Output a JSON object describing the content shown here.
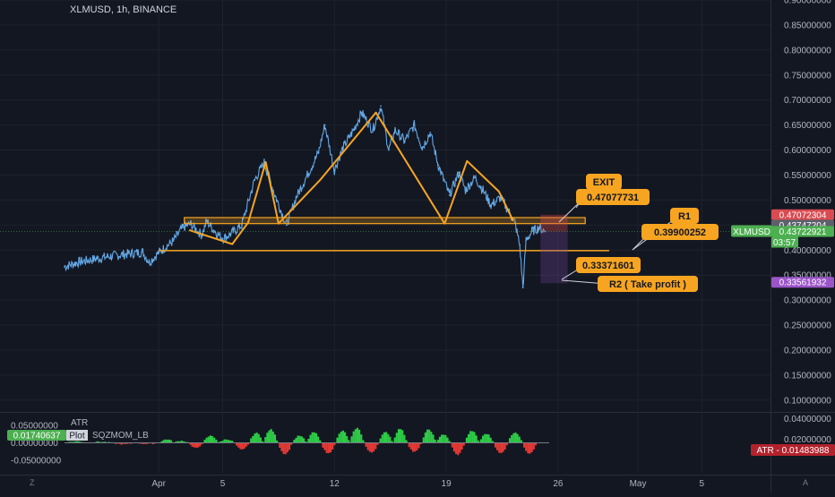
{
  "header": {
    "title": "XLMUSD, 1h, BINANCE"
  },
  "corner_labels": {
    "bottom_left": "Z",
    "bottom_right": "A"
  },
  "colors": {
    "background": "#131722",
    "candle": "#64a9e6",
    "pattern": "#f7a520",
    "badge_red": "#d94b51",
    "badge_grey": "#5d606b",
    "badge_green": "#4caf50",
    "badge_purple": "#9c55c9",
    "momentum_up": "#2ecc47",
    "momentum_down": "#e53935"
  },
  "chart_data": [
    {
      "type": "line",
      "title": "XLMUSD, 1h, BINANCE",
      "ylim": [
        0.08,
        0.9
      ],
      "y_ticks": [
        "0.90000000",
        "0.85000000",
        "0.80000000",
        "0.75000000",
        "0.70000000",
        "0.65000000",
        "0.60000000",
        "0.55000000",
        "0.50000000",
        "0.45000000",
        "0.40000000",
        "0.35000000",
        "0.30000000",
        "0.25000000",
        "0.20000000",
        "0.15000000",
        "0.10000000"
      ],
      "x_ticks": [
        {
          "label": "Apr",
          "x": 0
        },
        {
          "label": "5",
          "x": 4
        },
        {
          "label": "12",
          "x": 11
        },
        {
          "label": "19",
          "x": 18
        },
        {
          "label": "26",
          "x": 25
        },
        {
          "label": "May",
          "x": 30
        },
        {
          "label": "5",
          "x": 34
        }
      ],
      "xlim": [
        -5.9,
        38.3
      ],
      "series": [
        {
          "x": [
            -5.9,
            -5,
            -4,
            -3,
            -2,
            -1,
            -0.6,
            0,
            0.9,
            1.5,
            2,
            2.7,
            3,
            3.5,
            4,
            4.5,
            5.2,
            6,
            6.6,
            7.3,
            8,
            8.6,
            9.3,
            10,
            10.4,
            11,
            11.5,
            12.2,
            12.7,
            13.4,
            13.9,
            14.4,
            14.8,
            15.4,
            16,
            16.5,
            17,
            17.5,
            18.2,
            18.8,
            19.2,
            19.8,
            20.3,
            20.8,
            21.4,
            21.9,
            22.3,
            22.6,
            22.8,
            23,
            23.4,
            23.8,
            24.2
          ],
          "y": [
            0.367,
            0.376,
            0.382,
            0.388,
            0.392,
            0.396,
            0.376,
            0.395,
            0.418,
            0.445,
            0.452,
            0.43,
            0.458,
            0.438,
            0.423,
            0.432,
            0.45,
            0.54,
            0.575,
            0.508,
            0.45,
            0.505,
            0.55,
            0.595,
            0.65,
            0.56,
            0.602,
            0.64,
            0.675,
            0.64,
            0.688,
            0.6,
            0.64,
            0.618,
            0.65,
            0.605,
            0.635,
            0.57,
            0.51,
            0.555,
            0.52,
            0.545,
            0.52,
            0.49,
            0.505,
            0.478,
            0.455,
            0.41,
            0.325,
            0.42,
            0.438,
            0.445,
            0.437
          ]
        }
      ],
      "pattern_line": {
        "x": [
          1.9,
          4.6,
          5.6,
          6.7,
          7.5,
          10.1,
          13.6,
          17.9,
          19.3,
          21.3,
          22.2
        ],
        "y": [
          0.44,
          0.412,
          0.455,
          0.576,
          0.453,
          0.54,
          0.675,
          0.453,
          0.578,
          0.517,
          0.458
        ]
      },
      "neckline_box": {
        "x": [
          1.6,
          26.7
        ],
        "y": [
          0.453,
          0.465
        ]
      },
      "support_line": {
        "x": [
          0,
          28.2
        ],
        "y": 0.399
      },
      "position_box": {
        "x": [
          23.9,
          25.6
        ],
        "top": 0.4707,
        "mid": 0.4372,
        "bottom": 0.3337
      },
      "current_price": 0.43722921,
      "annotations": [
        {
          "label": "EXIT",
          "value": "0.47077731"
        },
        {
          "label": "R1",
          "value": "0.39900252"
        },
        {
          "label": "0.33371601"
        },
        {
          "label": "R2 ( Take profit )"
        }
      ],
      "price_badges": [
        {
          "value": "0.47072304",
          "y": 0.4707,
          "color": "#d94b51"
        },
        {
          "value": "0.43747204",
          "y": 0.45,
          "color": "#5d606b"
        },
        {
          "value": "0.43722921",
          "y": 0.4372,
          "color": "#4caf50",
          "symbol": "XLMUSD",
          "countdown": "03:57"
        },
        {
          "value": "0.33561932",
          "y": 0.3356,
          "color": "#9c55c9"
        }
      ]
    },
    {
      "type": "bar",
      "title": "ATR",
      "series_names": [
        "ATR",
        "SQZMOM_LB"
      ],
      "ylim": [
        -0.07,
        0.07
      ],
      "left_ticks": [
        "0.05000000",
        "0.00000000",
        "-0.05000000"
      ],
      "right_ticks": [
        "0.04000000",
        "0.02000000"
      ],
      "atr_value": "0.01483988",
      "momentum_value": "0.01740637",
      "plot_label": "Plot",
      "x": [
        -5.9,
        -4.5,
        -3,
        -1.5,
        0,
        0.9,
        1.8,
        2.7,
        3.7,
        4.7,
        5.6,
        6.5,
        7.4,
        8.3,
        9.2,
        10.1,
        11,
        11.9,
        12.8,
        13.7,
        14.6,
        15.5,
        16.4,
        17.3,
        18.2,
        19.1,
        20,
        20.9,
        21.8,
        22.7,
        23.6
      ],
      "values": [
        0.004,
        0.003,
        -0.004,
        -0.003,
        0.01,
        0.006,
        -0.015,
        0.02,
        0.01,
        -0.02,
        0.028,
        0.038,
        -0.032,
        0.02,
        0.03,
        -0.03,
        0.034,
        0.042,
        -0.028,
        0.03,
        0.04,
        -0.026,
        0.038,
        0.024,
        -0.034,
        0.034,
        0.026,
        -0.03,
        0.03,
        -0.03,
        0.038
      ]
    }
  ]
}
